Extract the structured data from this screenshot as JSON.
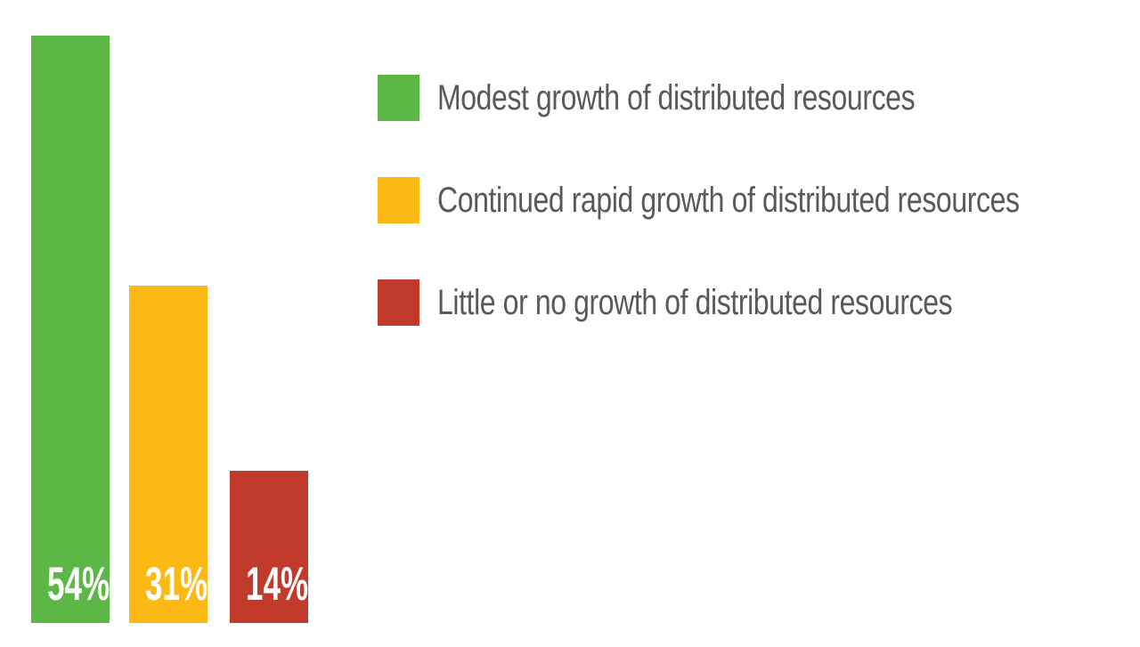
{
  "chart_data": {
    "type": "bar",
    "title": "",
    "categories": [
      "Modest growth of distributed resources",
      "Continued rapid growth of distributed resources",
      "Little or no growth of distributed resources"
    ],
    "values": [
      54,
      31,
      14
    ],
    "unit": "%",
    "ylim": [
      0,
      54
    ],
    "grid": false,
    "axes_visible": false,
    "legend_position": "top-right",
    "bars": [
      {
        "category": "Modest growth of distributed resources",
        "value": 54,
        "value_label": "54%",
        "color": "#5CB747"
      },
      {
        "category": "Continued rapid growth of distributed resources",
        "value": 31,
        "value_label": "31%",
        "color": "#FCB813"
      },
      {
        "category": "Little or no growth of distributed resources",
        "value": 14,
        "value_label": "14%",
        "color": "#C23A2C"
      }
    ]
  },
  "legend": {
    "items": [
      {
        "label": "Modest growth of distributed resources",
        "color": "#5CB747"
      },
      {
        "label": "Continued rapid growth of distributed resources",
        "color": "#FCB813"
      },
      {
        "label": "Little or no growth of distributed resources",
        "color": "#C23A2C"
      }
    ]
  },
  "colors": {
    "background": "#FFFFFF",
    "legend_text": "#58595B",
    "bar_value_text": "#FFFFFF"
  }
}
